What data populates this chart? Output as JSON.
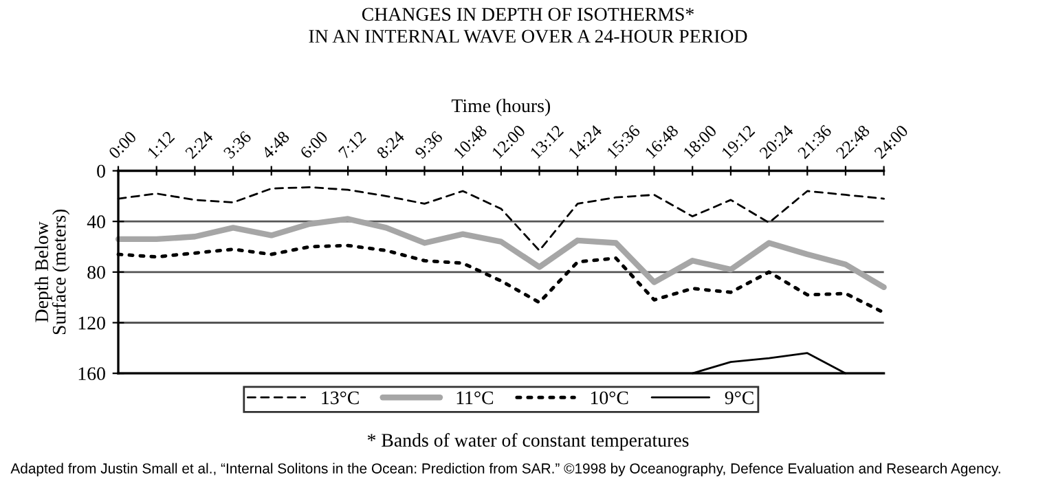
{
  "chart_data": {
    "type": "line",
    "title": "CHANGES IN DEPTH OF ISOTHERMS*\nIN AN INTERNAL WAVE OVER A 24-HOUR PERIOD",
    "xlabel": "Time (hours)",
    "ylabel": "Depth Below\nSurface (meters)",
    "categories": [
      "0:00",
      "1:12",
      "2:24",
      "3:36",
      "4:48",
      "6:00",
      "7:12",
      "8:24",
      "9:36",
      "10:48",
      "12:00",
      "13:12",
      "14:24",
      "15:36",
      "16:48",
      "18:00",
      "19:12",
      "20:24",
      "21:36",
      "22:48",
      "24:00"
    ],
    "series": [
      {
        "name": "13°C",
        "color": "#000000",
        "line_style": "dashed",
        "values": [
          22,
          18,
          23,
          25,
          14,
          13,
          15,
          20,
          26,
          16,
          30,
          63,
          26,
          21,
          19,
          36,
          23,
          41,
          16,
          19,
          22
        ]
      },
      {
        "name": "11°C",
        "color": "#a6a6a6",
        "line_style": "solid",
        "values": [
          54,
          54,
          52,
          45,
          51,
          42,
          38,
          45,
          57,
          50,
          56,
          76,
          55,
          57,
          88,
          71,
          78,
          57,
          66,
          74,
          92
        ]
      },
      {
        "name": "10°C",
        "color": "#000000",
        "line_style": "dotted",
        "values": [
          66,
          68,
          65,
          62,
          66,
          60,
          59,
          63,
          71,
          73,
          87,
          104,
          72,
          69,
          102,
          93,
          96,
          80,
          98,
          97,
          112
        ]
      },
      {
        "name": "9°C",
        "color": "#000000",
        "line_style": "solid",
        "values": [
          null,
          null,
          null,
          null,
          null,
          null,
          null,
          null,
          null,
          null,
          null,
          null,
          null,
          null,
          null,
          160,
          151,
          148,
          144,
          160,
          null
        ]
      }
    ],
    "ylim": [
      160,
      0
    ],
    "yticks": [
      0,
      40,
      80,
      120,
      160
    ],
    "grid": "y",
    "legend": "bottom",
    "marker": "none",
    "annotations": [
      "* Bands of water of constant temperatures",
      "Adapted from Justin Small et al., “Internal Solitons in the Ocean: Prediction from SAR.” ©1998 by Oceanography, Defence Evaluation and Research Agency."
    ]
  }
}
